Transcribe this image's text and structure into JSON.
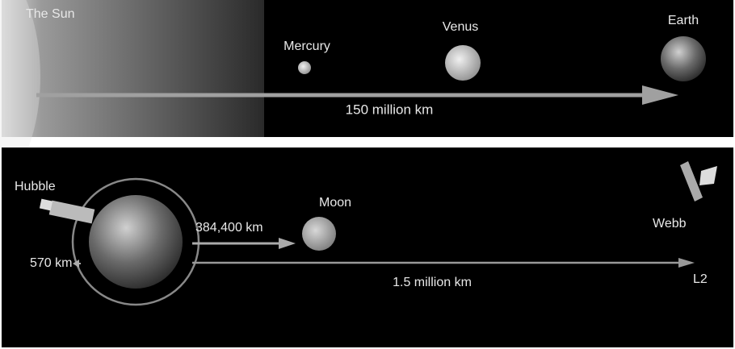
{
  "top_panel": {
    "sun": "The Sun",
    "planets": [
      "Mercury",
      "Venus",
      "Earth"
    ],
    "distance": "150 million km"
  },
  "bottom_panel": {
    "hubble": "Hubble",
    "hubble_distance": "570 km",
    "moon": "Moon",
    "moon_distance": "384,400 km",
    "webb": "Webb",
    "webb_distance": "1.5 million km",
    "l2": "L2"
  }
}
